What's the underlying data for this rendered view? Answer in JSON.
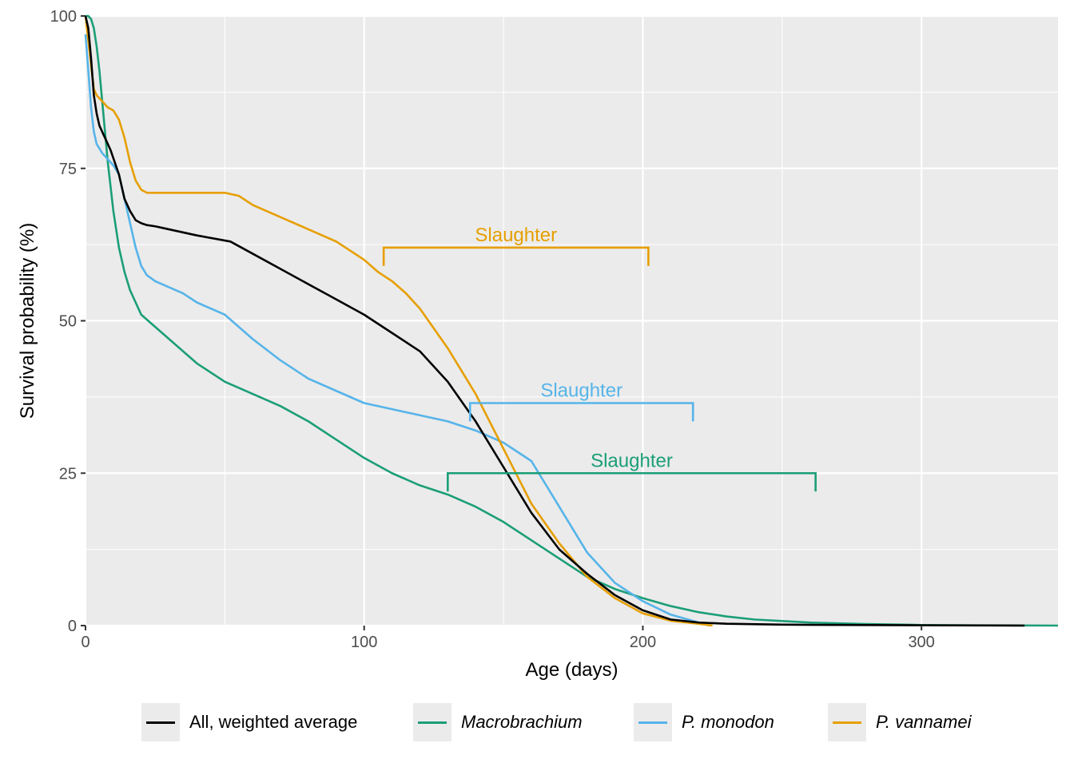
{
  "chart_data": {
    "type": "line",
    "xlabel": "Age (days)",
    "ylabel": "Survival probability (%)",
    "xlim": [
      0,
      349
    ],
    "ylim": [
      0,
      100
    ],
    "x_ticks": [
      0,
      100,
      200,
      300
    ],
    "y_ticks": [
      0,
      25,
      50,
      75,
      100
    ],
    "grid": true,
    "legend_position": "bottom",
    "series": [
      {
        "name": "All, weighted average",
        "italic": false,
        "color": "#000000",
        "x": [
          0,
          1,
          2,
          3,
          4,
          5,
          7,
          9,
          12,
          14,
          16,
          18,
          20,
          22,
          25,
          30,
          40,
          52,
          60,
          70,
          80,
          90,
          100,
          110,
          120,
          130,
          140,
          150,
          160,
          170,
          180,
          190,
          200,
          210,
          220,
          230,
          250,
          300,
          337
        ],
        "y": [
          100,
          98,
          93,
          87,
          84,
          82,
          80,
          78,
          74,
          70,
          68,
          66.5,
          66,
          65.7,
          65.5,
          65,
          64,
          63,
          61,
          58.5,
          56,
          53.5,
          51,
          48,
          45,
          40,
          33.5,
          26,
          18.5,
          12.5,
          8.5,
          5,
          2.5,
          1,
          0.5,
          0.3,
          0.15,
          0.05,
          0
        ]
      },
      {
        "name": "Macrobrachium",
        "italic": true,
        "color": "#1b9e77",
        "x": [
          0,
          1,
          2,
          3,
          4,
          5,
          6,
          7,
          8,
          10,
          12,
          14,
          16,
          18,
          20,
          25,
          30,
          35,
          40,
          50,
          60,
          70,
          80,
          90,
          100,
          110,
          120,
          130,
          140,
          150,
          160,
          170,
          180,
          190,
          200,
          210,
          220,
          230,
          240,
          260,
          280,
          300,
          320,
          349
        ],
        "y": [
          100,
          100,
          99.5,
          98,
          95,
          91,
          86,
          81,
          76,
          68,
          62,
          58,
          55,
          53,
          51,
          49,
          47,
          45,
          43,
          40,
          38,
          36,
          33.5,
          30.5,
          27.5,
          25,
          23,
          21.5,
          19.5,
          17,
          14,
          11,
          8,
          6,
          4.5,
          3.2,
          2.2,
          1.5,
          1,
          0.5,
          0.25,
          0.1,
          0.05,
          0
        ]
      },
      {
        "name": "P. monodon",
        "italic": true,
        "color": "#56b4e9",
        "x": [
          0,
          1,
          2,
          3,
          4,
          6,
          8,
          10,
          12,
          14,
          16,
          18,
          20,
          22,
          25,
          30,
          35,
          40,
          50,
          60,
          70,
          80,
          90,
          100,
          110,
          120,
          130,
          140,
          150,
          160,
          170,
          180,
          190,
          200,
          210,
          220,
          224
        ],
        "y": [
          97,
          91,
          85,
          81,
          79,
          77.5,
          76.5,
          75.5,
          74,
          70,
          66,
          62,
          59,
          57.5,
          56.5,
          55.5,
          54.5,
          53,
          51,
          47,
          43.5,
          40.5,
          38.5,
          36.5,
          35.5,
          34.5,
          33.5,
          32,
          30,
          27,
          19.5,
          12,
          7,
          4,
          1.8,
          0.5,
          0
        ]
      },
      {
        "name": "P. vannamei",
        "italic": true,
        "color": "#e69f00",
        "x": [
          0,
          1,
          2,
          3,
          4,
          6,
          8,
          10,
          12,
          14,
          16,
          18,
          20,
          22,
          25,
          30,
          40,
          50,
          55,
          60,
          70,
          80,
          90,
          100,
          105,
          110,
          115,
          120,
          130,
          140,
          150,
          160,
          170,
          180,
          190,
          200,
          210,
          220,
          225
        ],
        "y": [
          100,
          96,
          92,
          88,
          87,
          86,
          85,
          84.5,
          83,
          80,
          76,
          73,
          71.5,
          71,
          71,
          71,
          71,
          71,
          70.5,
          69,
          67,
          65,
          63,
          60,
          58,
          56.5,
          54.5,
          52,
          45.5,
          38,
          29,
          20,
          13.5,
          8,
          4.5,
          2,
          0.8,
          0.3,
          0
        ]
      }
    ],
    "annotations": [
      {
        "label": "Slaughter",
        "color": "#e69f00",
        "x_start": 107,
        "x_end": 202,
        "y": 62,
        "y_tick_end": 59
      },
      {
        "label": "Slaughter",
        "color": "#56b4e9",
        "x_start": 138,
        "x_end": 218,
        "y": 36.5,
        "y_tick_end": 33.5
      },
      {
        "label": "Slaughter",
        "color": "#1b9e77",
        "x_start": 130,
        "x_end": 262,
        "y": 25,
        "y_tick_end": 22
      }
    ]
  }
}
